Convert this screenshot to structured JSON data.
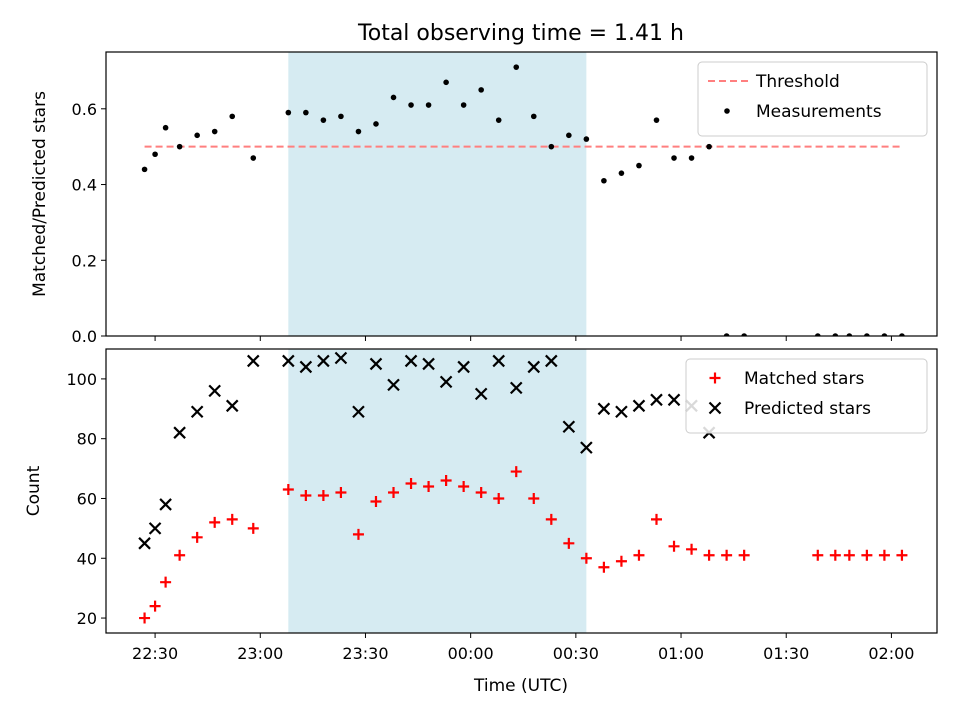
{
  "figure": {
    "title": "Total observing time = 1.41 h",
    "xlabel": "Time (UTC)"
  },
  "colors": {
    "shade": "#add8e6",
    "threshold": "#ff7f7f",
    "measurement": "#000000",
    "matched": "#ff0000",
    "predicted": "#000000"
  },
  "chart_data": [
    {
      "type": "scatter",
      "ylabel": "Matched/Predicted stars",
      "xlim": [
        "22:16",
        "02:13"
      ],
      "ylim": [
        0,
        0.75
      ],
      "yticks": [
        0.0,
        0.2,
        0.4,
        0.6
      ],
      "ytick_labels": [
        "0.0",
        "0.2",
        "0.4",
        "0.6"
      ],
      "grid": false,
      "legend_position": "top-right",
      "shaded_region": [
        "23:08",
        "00:33"
      ],
      "threshold": {
        "name": "Threshold",
        "y": 0.5,
        "x_range": [
          "22:27",
          "02:03"
        ],
        "style": "dashed"
      },
      "series": [
        {
          "name": "Measurements",
          "marker": "dot",
          "points": [
            [
              "22:27",
              0.44
            ],
            [
              "22:30",
              0.48
            ],
            [
              "22:33",
              0.55
            ],
            [
              "22:37",
              0.5
            ],
            [
              "22:42",
              0.53
            ],
            [
              "22:47",
              0.54
            ],
            [
              "22:52",
              0.58
            ],
            [
              "22:58",
              0.47
            ],
            [
              "23:08",
              0.59
            ],
            [
              "23:13",
              0.59
            ],
            [
              "23:18",
              0.57
            ],
            [
              "23:23",
              0.58
            ],
            [
              "23:28",
              0.54
            ],
            [
              "23:33",
              0.56
            ],
            [
              "23:38",
              0.63
            ],
            [
              "23:43",
              0.61
            ],
            [
              "23:48",
              0.61
            ],
            [
              "23:53",
              0.67
            ],
            [
              "23:58",
              0.61
            ],
            [
              "00:03",
              0.65
            ],
            [
              "00:08",
              0.57
            ],
            [
              "00:13",
              0.71
            ],
            [
              "00:18",
              0.58
            ],
            [
              "00:23",
              0.5
            ],
            [
              "00:28",
              0.53
            ],
            [
              "00:33",
              0.52
            ],
            [
              "00:38",
              0.41
            ],
            [
              "00:43",
              0.43
            ],
            [
              "00:48",
              0.45
            ],
            [
              "00:53",
              0.57
            ],
            [
              "00:58",
              0.47
            ],
            [
              "01:03",
              0.47
            ],
            [
              "01:08",
              0.5
            ],
            [
              "01:13",
              0.0
            ],
            [
              "01:18",
              0.0
            ],
            [
              "01:39",
              0.0
            ],
            [
              "01:44",
              0.0
            ],
            [
              "01:48",
              0.0
            ],
            [
              "01:53",
              0.0
            ],
            [
              "01:58",
              0.0
            ],
            [
              "02:03",
              0.0
            ]
          ]
        }
      ]
    },
    {
      "type": "scatter",
      "ylabel": "Count",
      "xlim": [
        "22:16",
        "02:13"
      ],
      "ylim": [
        15,
        110
      ],
      "yticks": [
        20,
        40,
        60,
        80,
        100
      ],
      "ytick_labels": [
        "20",
        "40",
        "60",
        "80",
        "100"
      ],
      "xticks": [
        "22:30",
        "23:00",
        "23:30",
        "00:00",
        "00:30",
        "01:00",
        "01:30",
        "02:00"
      ],
      "grid": false,
      "legend_position": "top-right",
      "shaded_region": [
        "23:08",
        "00:33"
      ],
      "series": [
        {
          "name": "Matched stars",
          "marker": "plus",
          "points": [
            [
              "22:27",
              20
            ],
            [
              "22:30",
              24
            ],
            [
              "22:33",
              32
            ],
            [
              "22:37",
              41
            ],
            [
              "22:42",
              47
            ],
            [
              "22:47",
              52
            ],
            [
              "22:52",
              53
            ],
            [
              "22:58",
              50
            ],
            [
              "23:08",
              63
            ],
            [
              "23:13",
              61
            ],
            [
              "23:18",
              61
            ],
            [
              "23:23",
              62
            ],
            [
              "23:28",
              48
            ],
            [
              "23:33",
              59
            ],
            [
              "23:38",
              62
            ],
            [
              "23:43",
              65
            ],
            [
              "23:48",
              64
            ],
            [
              "23:53",
              66
            ],
            [
              "23:58",
              64
            ],
            [
              "00:03",
              62
            ],
            [
              "00:08",
              60
            ],
            [
              "00:13",
              69
            ],
            [
              "00:18",
              60
            ],
            [
              "00:23",
              53
            ],
            [
              "00:28",
              45
            ],
            [
              "00:33",
              40
            ],
            [
              "00:38",
              37
            ],
            [
              "00:43",
              39
            ],
            [
              "00:48",
              41
            ],
            [
              "00:53",
              53
            ],
            [
              "00:58",
              44
            ],
            [
              "01:03",
              43
            ],
            [
              "01:08",
              41
            ],
            [
              "01:13",
              41
            ],
            [
              "01:18",
              41
            ],
            [
              "01:39",
              41
            ],
            [
              "01:44",
              41
            ],
            [
              "01:48",
              41
            ],
            [
              "01:53",
              41
            ],
            [
              "01:58",
              41
            ],
            [
              "02:03",
              41
            ]
          ]
        },
        {
          "name": "Predicted stars",
          "marker": "x",
          "points": [
            [
              "22:27",
              45
            ],
            [
              "22:30",
              50
            ],
            [
              "22:33",
              58
            ],
            [
              "22:37",
              82
            ],
            [
              "22:42",
              89
            ],
            [
              "22:47",
              96
            ],
            [
              "22:52",
              91
            ],
            [
              "22:58",
              106
            ],
            [
              "23:08",
              106
            ],
            [
              "23:13",
              104
            ],
            [
              "23:18",
              106
            ],
            [
              "23:23",
              107
            ],
            [
              "23:28",
              89
            ],
            [
              "23:33",
              105
            ],
            [
              "23:38",
              98
            ],
            [
              "23:43",
              106
            ],
            [
              "23:48",
              105
            ],
            [
              "23:53",
              99
            ],
            [
              "23:58",
              104
            ],
            [
              "00:03",
              95
            ],
            [
              "00:08",
              106
            ],
            [
              "00:13",
              97
            ],
            [
              "00:18",
              104
            ],
            [
              "00:23",
              106
            ],
            [
              "00:28",
              84
            ],
            [
              "00:33",
              77
            ],
            [
              "00:38",
              90
            ],
            [
              "00:43",
              89
            ],
            [
              "00:48",
              91
            ],
            [
              "00:53",
              93
            ],
            [
              "00:58",
              93
            ],
            [
              "01:03",
              91
            ],
            [
              "01:08",
              82
            ]
          ]
        }
      ]
    }
  ]
}
